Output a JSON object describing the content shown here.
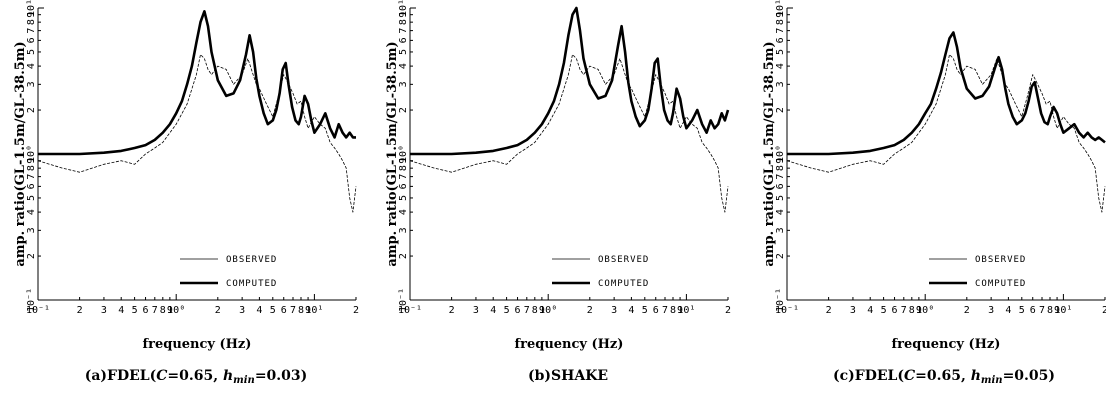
{
  "chart_data": [
    {
      "type": "line",
      "caption": "(a)FDEL(C=0.65, h_min=0.03)",
      "caption_parts": [
        "(a)FDEL(",
        "C",
        "=0.65, ",
        "h",
        "min",
        "=0.03)"
      ],
      "xlabel": "frequency (Hz)",
      "ylabel": "amp. ratio(GL-1.5m/GL-38.5m)",
      "xscale": "log",
      "yscale": "log",
      "xlim": [
        0.1,
        20
      ],
      "ylim": [
        0.1,
        10
      ],
      "x_tick_labels": [
        "10⁻¹",
        "2",
        "3",
        "4",
        "5",
        "6",
        "7",
        "8",
        "9",
        "10⁰",
        "2",
        "3",
        "4",
        "5",
        "6",
        "7",
        "8",
        "9",
        "10¹",
        "2"
      ],
      "y_tick_labels": [
        "10⁻¹",
        "2",
        "3",
        "4",
        "5",
        "6",
        "7",
        "8",
        "9",
        "10⁰",
        "2",
        "3",
        "4",
        "5",
        "6",
        "7",
        "8",
        "9",
        "10¹"
      ],
      "legend": [
        "OBSERVED",
        "COMPUTED"
      ],
      "legend_position": "bottom-right",
      "series": [
        {
          "name": "OBSERVED",
          "style": "thin",
          "x": [
            0.1,
            0.15,
            0.2,
            0.3,
            0.4,
            0.5,
            0.6,
            0.7,
            0.8,
            0.9,
            1.0,
            1.2,
            1.4,
            1.5,
            1.6,
            1.7,
            1.8,
            2.0,
            2.3,
            2.6,
            3.0,
            3.3,
            3.5,
            3.8,
            4.0,
            4.5,
            5.0,
            5.5,
            6.0,
            6.3,
            7.0,
            7.5,
            8.0,
            8.5,
            9.0,
            10,
            11,
            12,
            13,
            14,
            15,
            16,
            17,
            18,
            19,
            20
          ],
          "y": [
            0.9,
            0.8,
            0.75,
            0.85,
            0.9,
            0.85,
            1.0,
            1.1,
            1.2,
            1.4,
            1.6,
            2.2,
            3.5,
            4.8,
            4.5,
            3.8,
            3.5,
            4.0,
            3.8,
            3.0,
            3.5,
            4.5,
            3.8,
            3.0,
            2.8,
            2.2,
            1.8,
            2.5,
            3.5,
            3.2,
            2.6,
            2.2,
            2.3,
            1.8,
            1.5,
            1.8,
            1.6,
            1.5,
            1.2,
            1.1,
            1.0,
            0.9,
            0.8,
            0.5,
            0.4,
            0.6
          ]
        },
        {
          "name": "COMPUTED",
          "style": "thick",
          "x": [
            0.1,
            0.2,
            0.3,
            0.4,
            0.5,
            0.6,
            0.7,
            0.8,
            0.9,
            1.0,
            1.1,
            1.2,
            1.3,
            1.4,
            1.5,
            1.6,
            1.7,
            1.8,
            2.0,
            2.3,
            2.6,
            2.9,
            3.2,
            3.4,
            3.6,
            3.8,
            4.0,
            4.3,
            4.6,
            5.0,
            5.3,
            5.6,
            5.9,
            6.2,
            6.5,
            6.9,
            7.3,
            7.7,
            8.0,
            8.5,
            9.0,
            9.5,
            10,
            11,
            12,
            13,
            14,
            15,
            16,
            17,
            18,
            19,
            20
          ],
          "y": [
            1.0,
            1.0,
            1.02,
            1.05,
            1.1,
            1.15,
            1.25,
            1.4,
            1.6,
            1.9,
            2.3,
            3.0,
            4.0,
            5.8,
            8.0,
            9.5,
            7.5,
            5.0,
            3.2,
            2.5,
            2.6,
            3.2,
            4.8,
            6.5,
            5.0,
            3.3,
            2.5,
            1.9,
            1.6,
            1.7,
            2.0,
            2.6,
            3.8,
            4.2,
            3.0,
            2.1,
            1.7,
            1.6,
            1.8,
            2.5,
            2.2,
            1.7,
            1.4,
            1.6,
            1.9,
            1.5,
            1.3,
            1.6,
            1.4,
            1.3,
            1.4,
            1.3,
            1.3
          ]
        }
      ]
    },
    {
      "type": "line",
      "caption": "(b)SHAKE",
      "caption_parts": [
        "(b)SHAKE"
      ],
      "xlabel": "frequency (Hz)",
      "ylabel": "amp. ratio(GL-1.5m/GL-38.5m)",
      "xscale": "log",
      "yscale": "log",
      "xlim": [
        0.1,
        20
      ],
      "ylim": [
        0.1,
        10
      ],
      "x_tick_labels": [
        "10⁻¹",
        "2",
        "3",
        "4",
        "5",
        "6",
        "7",
        "8",
        "9",
        "10⁰",
        "2",
        "3",
        "4",
        "5",
        "6",
        "7",
        "8",
        "9",
        "10¹",
        "2"
      ],
      "y_tick_labels": [
        "10⁻¹",
        "2",
        "3",
        "4",
        "5",
        "6",
        "7",
        "8",
        "9",
        "10⁰",
        "2",
        "3",
        "4",
        "5",
        "6",
        "7",
        "8",
        "9",
        "10¹"
      ],
      "legend": [
        "OBSERVED",
        "COMPUTED"
      ],
      "legend_position": "bottom-right",
      "series": [
        {
          "name": "OBSERVED",
          "style": "thin",
          "x": [
            0.1,
            0.15,
            0.2,
            0.3,
            0.4,
            0.5,
            0.6,
            0.7,
            0.8,
            0.9,
            1.0,
            1.2,
            1.4,
            1.5,
            1.6,
            1.7,
            1.8,
            2.0,
            2.3,
            2.6,
            3.0,
            3.3,
            3.5,
            3.8,
            4.0,
            4.5,
            5.0,
            5.5,
            6.0,
            6.3,
            7.0,
            7.5,
            8.0,
            8.5,
            9.0,
            10,
            11,
            12,
            13,
            14,
            15,
            16,
            17,
            18,
            19,
            20
          ],
          "y": [
            0.9,
            0.8,
            0.75,
            0.85,
            0.9,
            0.85,
            1.0,
            1.1,
            1.2,
            1.4,
            1.6,
            2.2,
            3.5,
            4.8,
            4.5,
            3.8,
            3.5,
            4.0,
            3.8,
            3.0,
            3.5,
            4.5,
            3.8,
            3.0,
            2.8,
            2.2,
            1.8,
            2.5,
            3.5,
            3.2,
            2.6,
            2.2,
            2.3,
            1.8,
            1.5,
            1.8,
            1.6,
            1.5,
            1.2,
            1.1,
            1.0,
            0.9,
            0.8,
            0.5,
            0.4,
            0.6
          ]
        },
        {
          "name": "COMPUTED",
          "style": "thick",
          "x": [
            0.1,
            0.2,
            0.3,
            0.4,
            0.5,
            0.6,
            0.7,
            0.8,
            0.9,
            1.0,
            1.1,
            1.2,
            1.3,
            1.4,
            1.5,
            1.6,
            1.7,
            1.8,
            2.0,
            2.3,
            2.6,
            2.9,
            3.2,
            3.4,
            3.6,
            3.8,
            4.0,
            4.3,
            4.6,
            5.0,
            5.3,
            5.6,
            5.9,
            6.2,
            6.5,
            6.9,
            7.3,
            7.7,
            8.0,
            8.5,
            9.0,
            9.5,
            10,
            11,
            12,
            13,
            14,
            15,
            16,
            17,
            18,
            19,
            20
          ],
          "y": [
            1.0,
            1.0,
            1.02,
            1.05,
            1.1,
            1.15,
            1.25,
            1.4,
            1.6,
            1.9,
            2.3,
            3.0,
            4.2,
            6.5,
            9.0,
            10.0,
            7.0,
            4.5,
            3.0,
            2.4,
            2.5,
            3.2,
            5.5,
            7.5,
            5.0,
            3.1,
            2.3,
            1.8,
            1.55,
            1.7,
            2.0,
            2.8,
            4.2,
            4.5,
            3.0,
            2.0,
            1.7,
            1.6,
            1.9,
            2.8,
            2.4,
            1.8,
            1.5,
            1.7,
            2.0,
            1.6,
            1.4,
            1.7,
            1.5,
            1.6,
            1.9,
            1.7,
            2.0
          ]
        }
      ]
    },
    {
      "type": "line",
      "caption": "(c)FDEL(C=0.65, h_min=0.05)",
      "caption_parts": [
        "(c)FDEL(",
        "C",
        "=0.65, ",
        "h",
        "min",
        "=0.05)"
      ],
      "xlabel": "frequency (Hz)",
      "ylabel": "amp. ratio(GL-1.5m/GL-38.5m)",
      "xscale": "log",
      "yscale": "log",
      "xlim": [
        0.1,
        20
      ],
      "ylim": [
        0.1,
        10
      ],
      "x_tick_labels": [
        "10⁻¹",
        "2",
        "3",
        "4",
        "5",
        "6",
        "7",
        "8",
        "9",
        "10⁰",
        "2",
        "3",
        "4",
        "5",
        "6",
        "7",
        "8",
        "9",
        "10¹",
        "2"
      ],
      "y_tick_labels": [
        "10⁻¹",
        "2",
        "3",
        "4",
        "5",
        "6",
        "7",
        "8",
        "9",
        "10⁰",
        "2",
        "3",
        "4",
        "5",
        "6",
        "7",
        "8",
        "9",
        "10¹"
      ],
      "legend": [
        "OBSERVED",
        "COMPUTED"
      ],
      "legend_position": "bottom-right",
      "series": [
        {
          "name": "OBSERVED",
          "style": "thin",
          "x": [
            0.1,
            0.15,
            0.2,
            0.3,
            0.4,
            0.5,
            0.6,
            0.7,
            0.8,
            0.9,
            1.0,
            1.2,
            1.4,
            1.5,
            1.6,
            1.7,
            1.8,
            2.0,
            2.3,
            2.6,
            3.0,
            3.3,
            3.5,
            3.8,
            4.0,
            4.5,
            5.0,
            5.5,
            6.0,
            6.3,
            7.0,
            7.5,
            8.0,
            8.5,
            9.0,
            10,
            11,
            12,
            13,
            14,
            15,
            16,
            17,
            18,
            19,
            20
          ],
          "y": [
            0.9,
            0.8,
            0.75,
            0.85,
            0.9,
            0.85,
            1.0,
            1.1,
            1.2,
            1.4,
            1.6,
            2.2,
            3.5,
            4.8,
            4.5,
            3.8,
            3.5,
            4.0,
            3.8,
            3.0,
            3.5,
            4.5,
            3.8,
            3.0,
            2.8,
            2.2,
            1.8,
            2.5,
            3.5,
            3.2,
            2.6,
            2.2,
            2.3,
            1.8,
            1.5,
            1.8,
            1.6,
            1.5,
            1.2,
            1.1,
            1.0,
            0.9,
            0.8,
            0.5,
            0.4,
            0.6
          ]
        },
        {
          "name": "COMPUTED",
          "style": "thick",
          "x": [
            0.1,
            0.2,
            0.3,
            0.4,
            0.5,
            0.6,
            0.7,
            0.8,
            0.9,
            1.0,
            1.1,
            1.2,
            1.3,
            1.4,
            1.5,
            1.6,
            1.7,
            1.8,
            2.0,
            2.3,
            2.6,
            2.9,
            3.2,
            3.4,
            3.6,
            3.8,
            4.0,
            4.3,
            4.6,
            5.0,
            5.3,
            5.6,
            5.9,
            6.2,
            6.5,
            6.9,
            7.3,
            7.7,
            8.0,
            8.5,
            9.0,
            9.5,
            10,
            11,
            12,
            13,
            14,
            15,
            16,
            17,
            18,
            19,
            20
          ],
          "y": [
            1.0,
            1.0,
            1.02,
            1.05,
            1.1,
            1.15,
            1.25,
            1.4,
            1.6,
            1.9,
            2.2,
            2.8,
            3.6,
            4.8,
            6.2,
            6.8,
            5.4,
            3.9,
            2.8,
            2.4,
            2.5,
            2.9,
            3.9,
            4.6,
            3.8,
            2.8,
            2.2,
            1.8,
            1.6,
            1.7,
            1.9,
            2.3,
            2.9,
            3.1,
            2.5,
            1.9,
            1.65,
            1.6,
            1.8,
            2.1,
            1.9,
            1.6,
            1.4,
            1.5,
            1.6,
            1.4,
            1.3,
            1.4,
            1.3,
            1.25,
            1.3,
            1.25,
            1.2
          ]
        }
      ]
    }
  ]
}
